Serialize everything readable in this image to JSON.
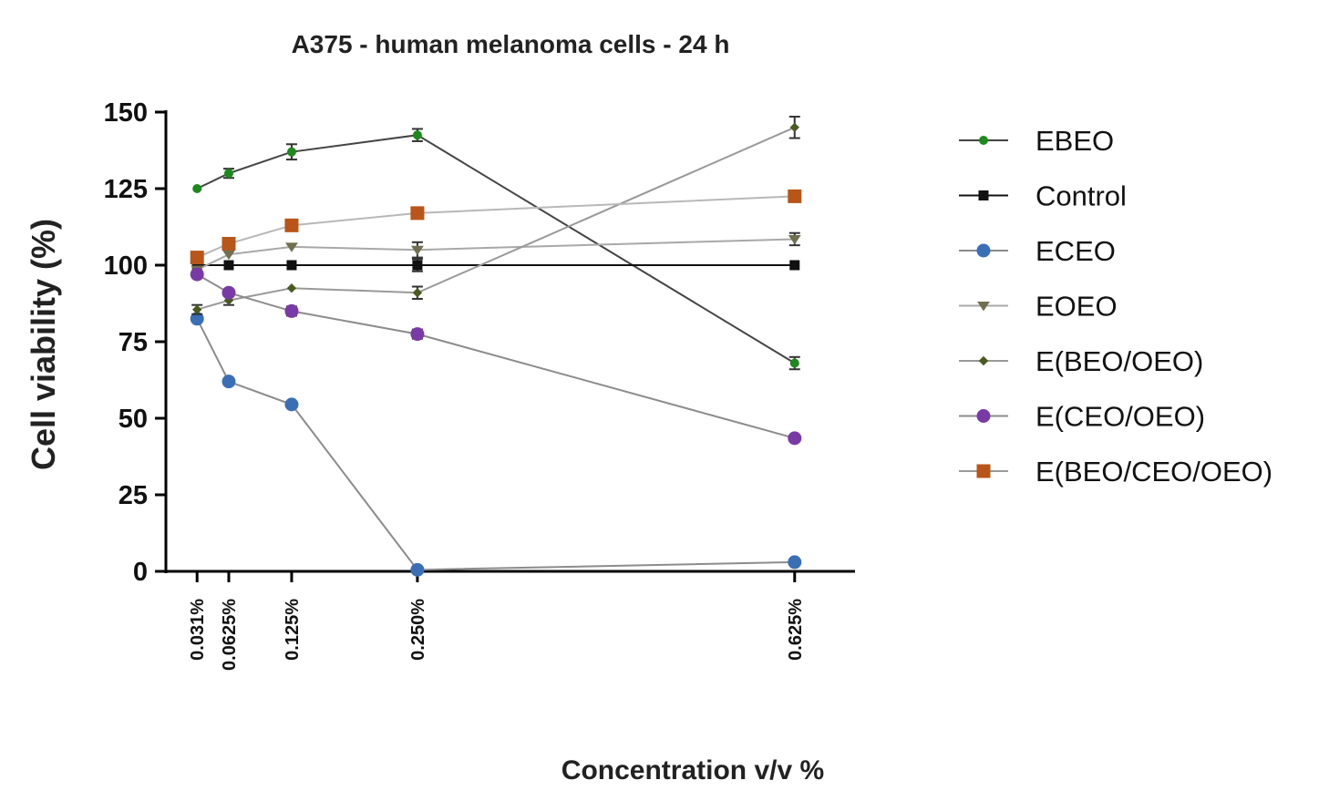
{
  "chart_data": {
    "type": "line",
    "title": "A375 - human melanoma cells - 24 h",
    "xlabel": "Concentration v/v %",
    "ylabel": "Cell viability (%)",
    "categories": [
      "0.031%",
      "0.0625%",
      "0.125%",
      "0.250%",
      "0.625%"
    ],
    "x": [
      0.031,
      0.0625,
      0.125,
      0.25,
      0.625
    ],
    "xlim": [
      0.0,
      0.685
    ],
    "ylim": [
      0,
      150
    ],
    "yticks": [
      0,
      25,
      50,
      75,
      100,
      125,
      150
    ],
    "grid": false,
    "legend_position": "right",
    "series": [
      {
        "name": "EBEO",
        "color": "#1e8a1e",
        "line_color": "#444444",
        "marker": "circle-small",
        "values": [
          125,
          130,
          137,
          142.5,
          68
        ],
        "errors": [
          0,
          1.5,
          2.5,
          2,
          2
        ]
      },
      {
        "name": "Control",
        "color": "#111111",
        "line_color": "#111111",
        "marker": "square-small",
        "values": [
          100,
          100,
          100,
          100,
          100
        ],
        "errors": [
          0,
          0,
          0,
          2,
          0
        ]
      },
      {
        "name": "ECEO",
        "color": "#3a6fb6",
        "line_color": "#8c8c8c",
        "marker": "circle",
        "values": [
          82.5,
          62,
          54.5,
          0.5,
          3
        ],
        "errors": [
          0,
          0,
          0,
          0,
          0
        ]
      },
      {
        "name": "EOEO",
        "color": "#707050",
        "line_color": "#a8a8a8",
        "marker": "triangle-down",
        "values": [
          98.5,
          103.5,
          106,
          105,
          108.5
        ],
        "errors": [
          0,
          0,
          0,
          2.5,
          2
        ]
      },
      {
        "name": "E(BEO/OEO)",
        "color": "#4a5a20",
        "line_color": "#999999",
        "marker": "diamond",
        "values": [
          85.5,
          88.5,
          92.5,
          91,
          145
        ],
        "errors": [
          1.5,
          1.5,
          0,
          2,
          3.5
        ]
      },
      {
        "name": "E(CEO/OEO)",
        "color": "#7a3aa6",
        "line_color": "#8c8c8c",
        "marker": "circle",
        "values": [
          97,
          91,
          85,
          77.5,
          43.5
        ],
        "errors": [
          0,
          0,
          1.5,
          1.5,
          0
        ]
      },
      {
        "name": "E(BEO/CEO/OEO)",
        "color": "#b8561a",
        "line_color": "#b8b8b8",
        "marker": "square",
        "values": [
          102.5,
          107,
          113,
          117,
          122.5
        ],
        "errors": [
          0,
          0,
          0,
          0,
          0
        ]
      }
    ]
  }
}
